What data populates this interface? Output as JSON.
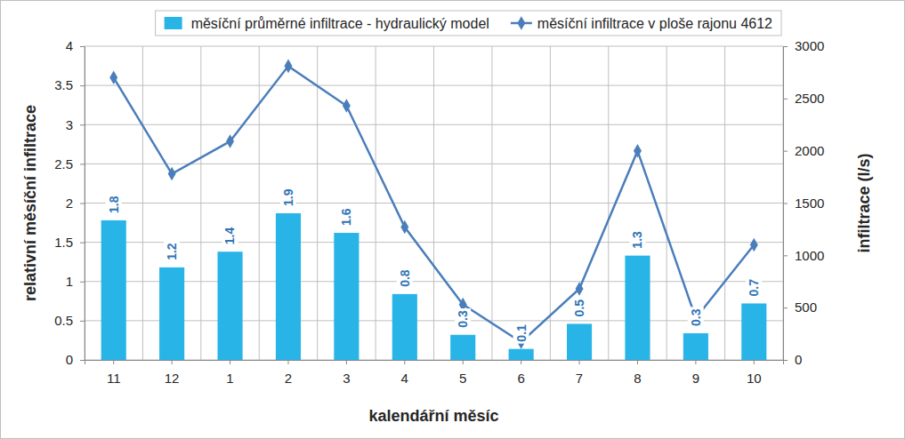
{
  "chart_data": {
    "type": "bar",
    "categories": [
      "11",
      "12",
      "1",
      "2",
      "3",
      "4",
      "5",
      "6",
      "7",
      "8",
      "9",
      "10"
    ],
    "x_label": "kalendářní měsíc",
    "y_label": "relativní měsíční infiltrace",
    "y2_label": "infiltrace (l/s)",
    "ylim": [
      0,
      4
    ],
    "yticks": [
      0,
      0.5,
      1,
      1.5,
      2,
      2.5,
      3,
      3.5,
      4
    ],
    "y2lim": [
      0,
      3000
    ],
    "y2ticks": [
      0,
      500,
      1000,
      1500,
      2000,
      2500,
      3000
    ],
    "grid": true,
    "legend": "upper right",
    "data_labels": true,
    "series": [
      {
        "name": "měsíční průměrné infiltrace - hydraulický model",
        "type": "bar",
        "color": "#29B4E8",
        "values": [
          1.78,
          1.18,
          1.38,
          1.87,
          1.62,
          0.84,
          0.32,
          0.14,
          0.46,
          1.33,
          0.34,
          0.72
        ],
        "value_labels": [
          "1.8",
          "1.2",
          "1.4",
          "1.9",
          "1.6",
          "0.8",
          "0.3",
          "0.1",
          "0.5",
          "1.3",
          "0.3",
          "0.7"
        ]
      },
      {
        "name": "měsíční infiltrace v ploše rajonu 4612",
        "type": "line",
        "axis": "y2",
        "color": "#4A7EBB",
        "marker": "diamond",
        "values": [
          2700,
          1780,
          2090,
          2810,
          2430,
          1270,
          530,
          170,
          680,
          2000,
          400,
          1100
        ]
      }
    ]
  }
}
